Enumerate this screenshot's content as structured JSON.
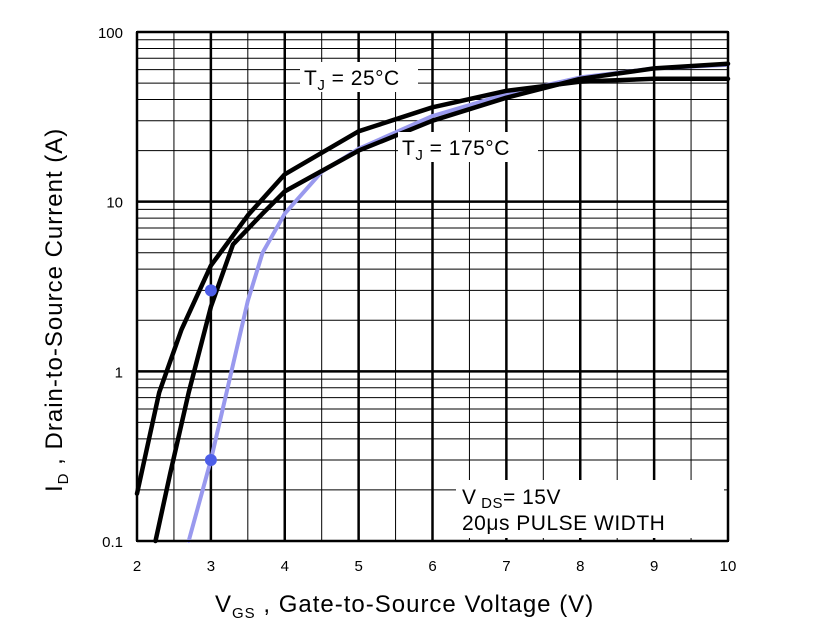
{
  "chart_data": {
    "type": "line",
    "xlabel": {
      "main": "V",
      "sub": "GS",
      "rest": " , Gate-to-Source Voltage (V)"
    },
    "ylabel": {
      "main": "I",
      "sub": "D",
      "rest": " , Drain-to-Source Current (A)"
    },
    "xlim": [
      2,
      10
    ],
    "ylim": [
      0.1,
      100
    ],
    "yscale": "log",
    "grid": true,
    "x_ticks": [
      "2",
      "3",
      "4",
      "5",
      "6",
      "7",
      "8",
      "9",
      "10"
    ],
    "y_ticks": [
      "0.1",
      "1",
      "10",
      "100"
    ],
    "series": [
      {
        "label_main": "T",
        "label_sub": "J",
        "label_rest": " = 25°C",
        "color": "#000000",
        "x": [
          2.0,
          2.3,
          2.6,
          3.0,
          3.5,
          4.0,
          5.0,
          6.0,
          7.0,
          8.0,
          9.0,
          10.0
        ],
        "y": [
          0.19,
          0.75,
          1.75,
          4.2,
          8.3,
          14.5,
          26.0,
          36.0,
          45.0,
          51.0,
          53.0,
          53.0
        ]
      },
      {
        "label_main": "T",
        "label_sub": "J",
        "label_rest": " = 175°C",
        "color": "#000000",
        "x": [
          2.25,
          2.45,
          2.7,
          3.0,
          3.3,
          3.7,
          4.0,
          5.0,
          6.0,
          7.0,
          8.0,
          9.0,
          10.0
        ],
        "y": [
          0.1,
          0.25,
          0.75,
          2.4,
          5.6,
          8.5,
          11.5,
          20.0,
          30.0,
          41.0,
          53.0,
          61.0,
          65.0
        ]
      },
      {
        "color": "#9999ee",
        "x": [
          2.7,
          3.0,
          3.5,
          3.7,
          4.0,
          4.5,
          5.0,
          6.0,
          7.0,
          8.0,
          9.0,
          10.0
        ],
        "y": [
          0.1,
          0.3,
          2.6,
          5.0,
          8.5,
          15.0,
          20.5,
          32.0,
          43.0,
          54.0,
          61.0,
          64.0
        ]
      }
    ],
    "markers": [
      {
        "x": 3.0,
        "y": 3.0,
        "color": "#4d5ee8"
      },
      {
        "x": 3.0,
        "y": 0.3,
        "color": "#4d5ee8"
      }
    ],
    "annotation_vds": {
      "main": "V",
      "sub": " DS",
      "rest": "= 15V"
    },
    "annotation_pulse": "20μs PULSE WIDTH"
  }
}
